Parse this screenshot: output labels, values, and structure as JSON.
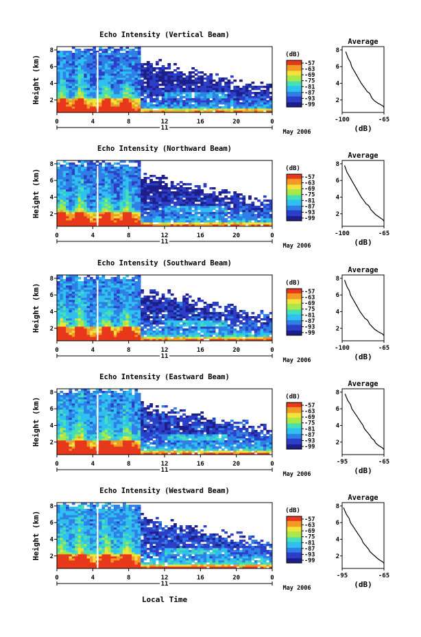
{
  "figure": {
    "date_label": "May 2006",
    "date_marker": "11",
    "xlabel": "Local Time"
  },
  "colors": {
    "scale": [
      "#1e1e8a",
      "#2c3fc8",
      "#2f7fe6",
      "#2fc0ef",
      "#46e0b4",
      "#a8e84a",
      "#f2e23a",
      "#f39a26",
      "#e8381c"
    ],
    "axis": "#000000",
    "background": "#ffffff"
  },
  "chart_data": [
    {
      "type": "heatmap",
      "beam": "Vertical",
      "title": "Echo Intensity (Vertical Beam)",
      "ylabel": "Height (km)",
      "yticks": [
        "2",
        "4",
        "6",
        "8"
      ],
      "ylim": [
        0.5,
        8.4
      ],
      "xticks": [
        "0",
        "4",
        "8",
        "12",
        "16",
        "20",
        "0"
      ],
      "xlim": [
        0,
        24
      ],
      "colorbar": {
        "unit": "(dB)",
        "ticks": [
          "-57",
          "-63",
          "-69",
          "-75",
          "-81",
          "-87",
          "-93",
          "-99"
        ]
      },
      "average_profile": {
        "title": "Average",
        "xlabel": "(dB)",
        "xticks": [
          "-100",
          "-65"
        ],
        "xlim": [
          -100,
          -65
        ],
        "yticks": [
          "2",
          "4",
          "6",
          "8"
        ],
        "ylim": [
          0.5,
          8.4
        ],
        "x": [
          -97,
          -95,
          -93,
          -92,
          -90,
          -88,
          -86,
          -84,
          -82,
          -80,
          -79,
          -77,
          -76,
          -75,
          -73,
          -70,
          -66,
          -65
        ],
        "y": [
          7.8,
          7.0,
          6.5,
          6.0,
          5.5,
          5.0,
          4.5,
          4.0,
          3.6,
          3.2,
          3.0,
          2.8,
          2.5,
          2.2,
          1.9,
          1.6,
          1.3,
          1.1
        ]
      }
    },
    {
      "type": "heatmap",
      "beam": "Northward",
      "title": "Echo Intensity (Northward Beam)",
      "ylabel": "Height (km)",
      "yticks": [
        "2",
        "4",
        "6",
        "8"
      ],
      "ylim": [
        0.5,
        8.4
      ],
      "xticks": [
        "0",
        "4",
        "8",
        "12",
        "16",
        "20",
        "0"
      ],
      "xlim": [
        0,
        24
      ],
      "colorbar": {
        "unit": "(dB)",
        "ticks": [
          "-57",
          "-63",
          "-69",
          "-75",
          "-81",
          "-87",
          "-93",
          "-99"
        ]
      },
      "average_profile": {
        "title": "Average",
        "xlabel": "(dB)",
        "xticks": [
          "-100",
          "-65"
        ],
        "xlim": [
          -100,
          -65
        ],
        "yticks": [
          "2",
          "4",
          "6",
          "8"
        ],
        "ylim": [
          0.5,
          8.4
        ],
        "x": [
          -98,
          -96,
          -94,
          -92,
          -90,
          -88,
          -86,
          -84,
          -82,
          -80,
          -78,
          -77,
          -76,
          -74,
          -72,
          -69,
          -66,
          -65
        ],
        "y": [
          7.8,
          7.0,
          6.5,
          6.0,
          5.5,
          5.0,
          4.5,
          4.0,
          3.6,
          3.2,
          3.0,
          2.8,
          2.5,
          2.2,
          1.9,
          1.6,
          1.3,
          1.1
        ]
      }
    },
    {
      "type": "heatmap",
      "beam": "Southward",
      "title": "Echo Intensity (Southward Beam)",
      "ylabel": "Height (km)",
      "yticks": [
        "2",
        "4",
        "6",
        "8"
      ],
      "ylim": [
        0.5,
        8.4
      ],
      "xticks": [
        "0",
        "4",
        "8",
        "12",
        "16",
        "20",
        "0"
      ],
      "xlim": [
        0,
        24
      ],
      "colorbar": {
        "unit": "(dB)",
        "ticks": [
          "-57",
          "-63",
          "-69",
          "-75",
          "-81",
          "-87",
          "-93",
          "-99"
        ]
      },
      "average_profile": {
        "title": "Average",
        "xlabel": "(dB)",
        "xticks": [
          "-100",
          "-65"
        ],
        "xlim": [
          -100,
          -65
        ],
        "yticks": [
          "2",
          "4",
          "6",
          "8"
        ],
        "ylim": [
          0.5,
          8.4
        ],
        "x": [
          -98,
          -96,
          -94,
          -93,
          -91,
          -89,
          -87,
          -85,
          -83,
          -81,
          -79,
          -78,
          -77,
          -75,
          -73,
          -70,
          -66,
          -65
        ],
        "y": [
          7.8,
          7.0,
          6.5,
          6.0,
          5.5,
          5.0,
          4.5,
          4.0,
          3.6,
          3.2,
          3.0,
          2.8,
          2.5,
          2.2,
          1.9,
          1.6,
          1.3,
          1.1
        ]
      }
    },
    {
      "type": "heatmap",
      "beam": "Eastward",
      "title": "Echo Intensity (Eastward Beam)",
      "ylabel": "Height (km)",
      "yticks": [
        "2",
        "4",
        "6",
        "8"
      ],
      "ylim": [
        0.5,
        8.4
      ],
      "xticks": [
        "0",
        "4",
        "8",
        "12",
        "16",
        "20",
        "0"
      ],
      "xlim": [
        0,
        24
      ],
      "colorbar": {
        "unit": "(dB)",
        "ticks": [
          "-57",
          "-63",
          "-69",
          "-75",
          "-81",
          "-87",
          "-93",
          "-99"
        ]
      },
      "average_profile": {
        "title": "Average",
        "xlabel": "(dB)",
        "xticks": [
          "-95",
          "-65"
        ],
        "xlim": [
          -95,
          -65
        ],
        "yticks": [
          "2",
          "4",
          "6",
          "8"
        ],
        "ylim": [
          0.5,
          8.4
        ],
        "x": [
          -93,
          -91,
          -89,
          -88,
          -86,
          -84,
          -82,
          -80,
          -79,
          -77,
          -76,
          -75,
          -74,
          -72,
          -71,
          -69,
          -66,
          -65
        ],
        "y": [
          7.8,
          7.0,
          6.5,
          6.0,
          5.5,
          5.0,
          4.5,
          4.0,
          3.6,
          3.2,
          3.0,
          2.8,
          2.5,
          2.2,
          1.9,
          1.6,
          1.3,
          1.1
        ]
      }
    },
    {
      "type": "heatmap",
      "beam": "Westward",
      "title": "Echo Intensity (Westward Beam)",
      "ylabel": "Height (km)",
      "yticks": [
        "2",
        "4",
        "6",
        "8"
      ],
      "ylim": [
        0.5,
        8.4
      ],
      "xticks": [
        "0",
        "4",
        "8",
        "12",
        "16",
        "20",
        "0"
      ],
      "xlim": [
        0,
        24
      ],
      "colorbar": {
        "unit": "(dB)",
        "ticks": [
          "-57",
          "-63",
          "-69",
          "-75",
          "-81",
          "-87",
          "-93",
          "-99"
        ]
      },
      "average_profile": {
        "title": "Average",
        "xlabel": "(dB)",
        "xticks": [
          "-95",
          "-65"
        ],
        "xlim": [
          -95,
          -65
        ],
        "yticks": [
          "2",
          "4",
          "6",
          "8"
        ],
        "ylim": [
          0.5,
          8.4
        ],
        "x": [
          -94,
          -92,
          -90,
          -89,
          -87,
          -85,
          -83,
          -81,
          -80,
          -78,
          -77,
          -76,
          -75,
          -73,
          -71,
          -69,
          -66,
          -65
        ],
        "y": [
          7.8,
          7.0,
          6.5,
          6.0,
          5.5,
          5.0,
          4.5,
          4.0,
          3.6,
          3.2,
          3.0,
          2.8,
          2.5,
          2.2,
          1.9,
          1.6,
          1.3,
          1.1
        ]
      }
    }
  ]
}
